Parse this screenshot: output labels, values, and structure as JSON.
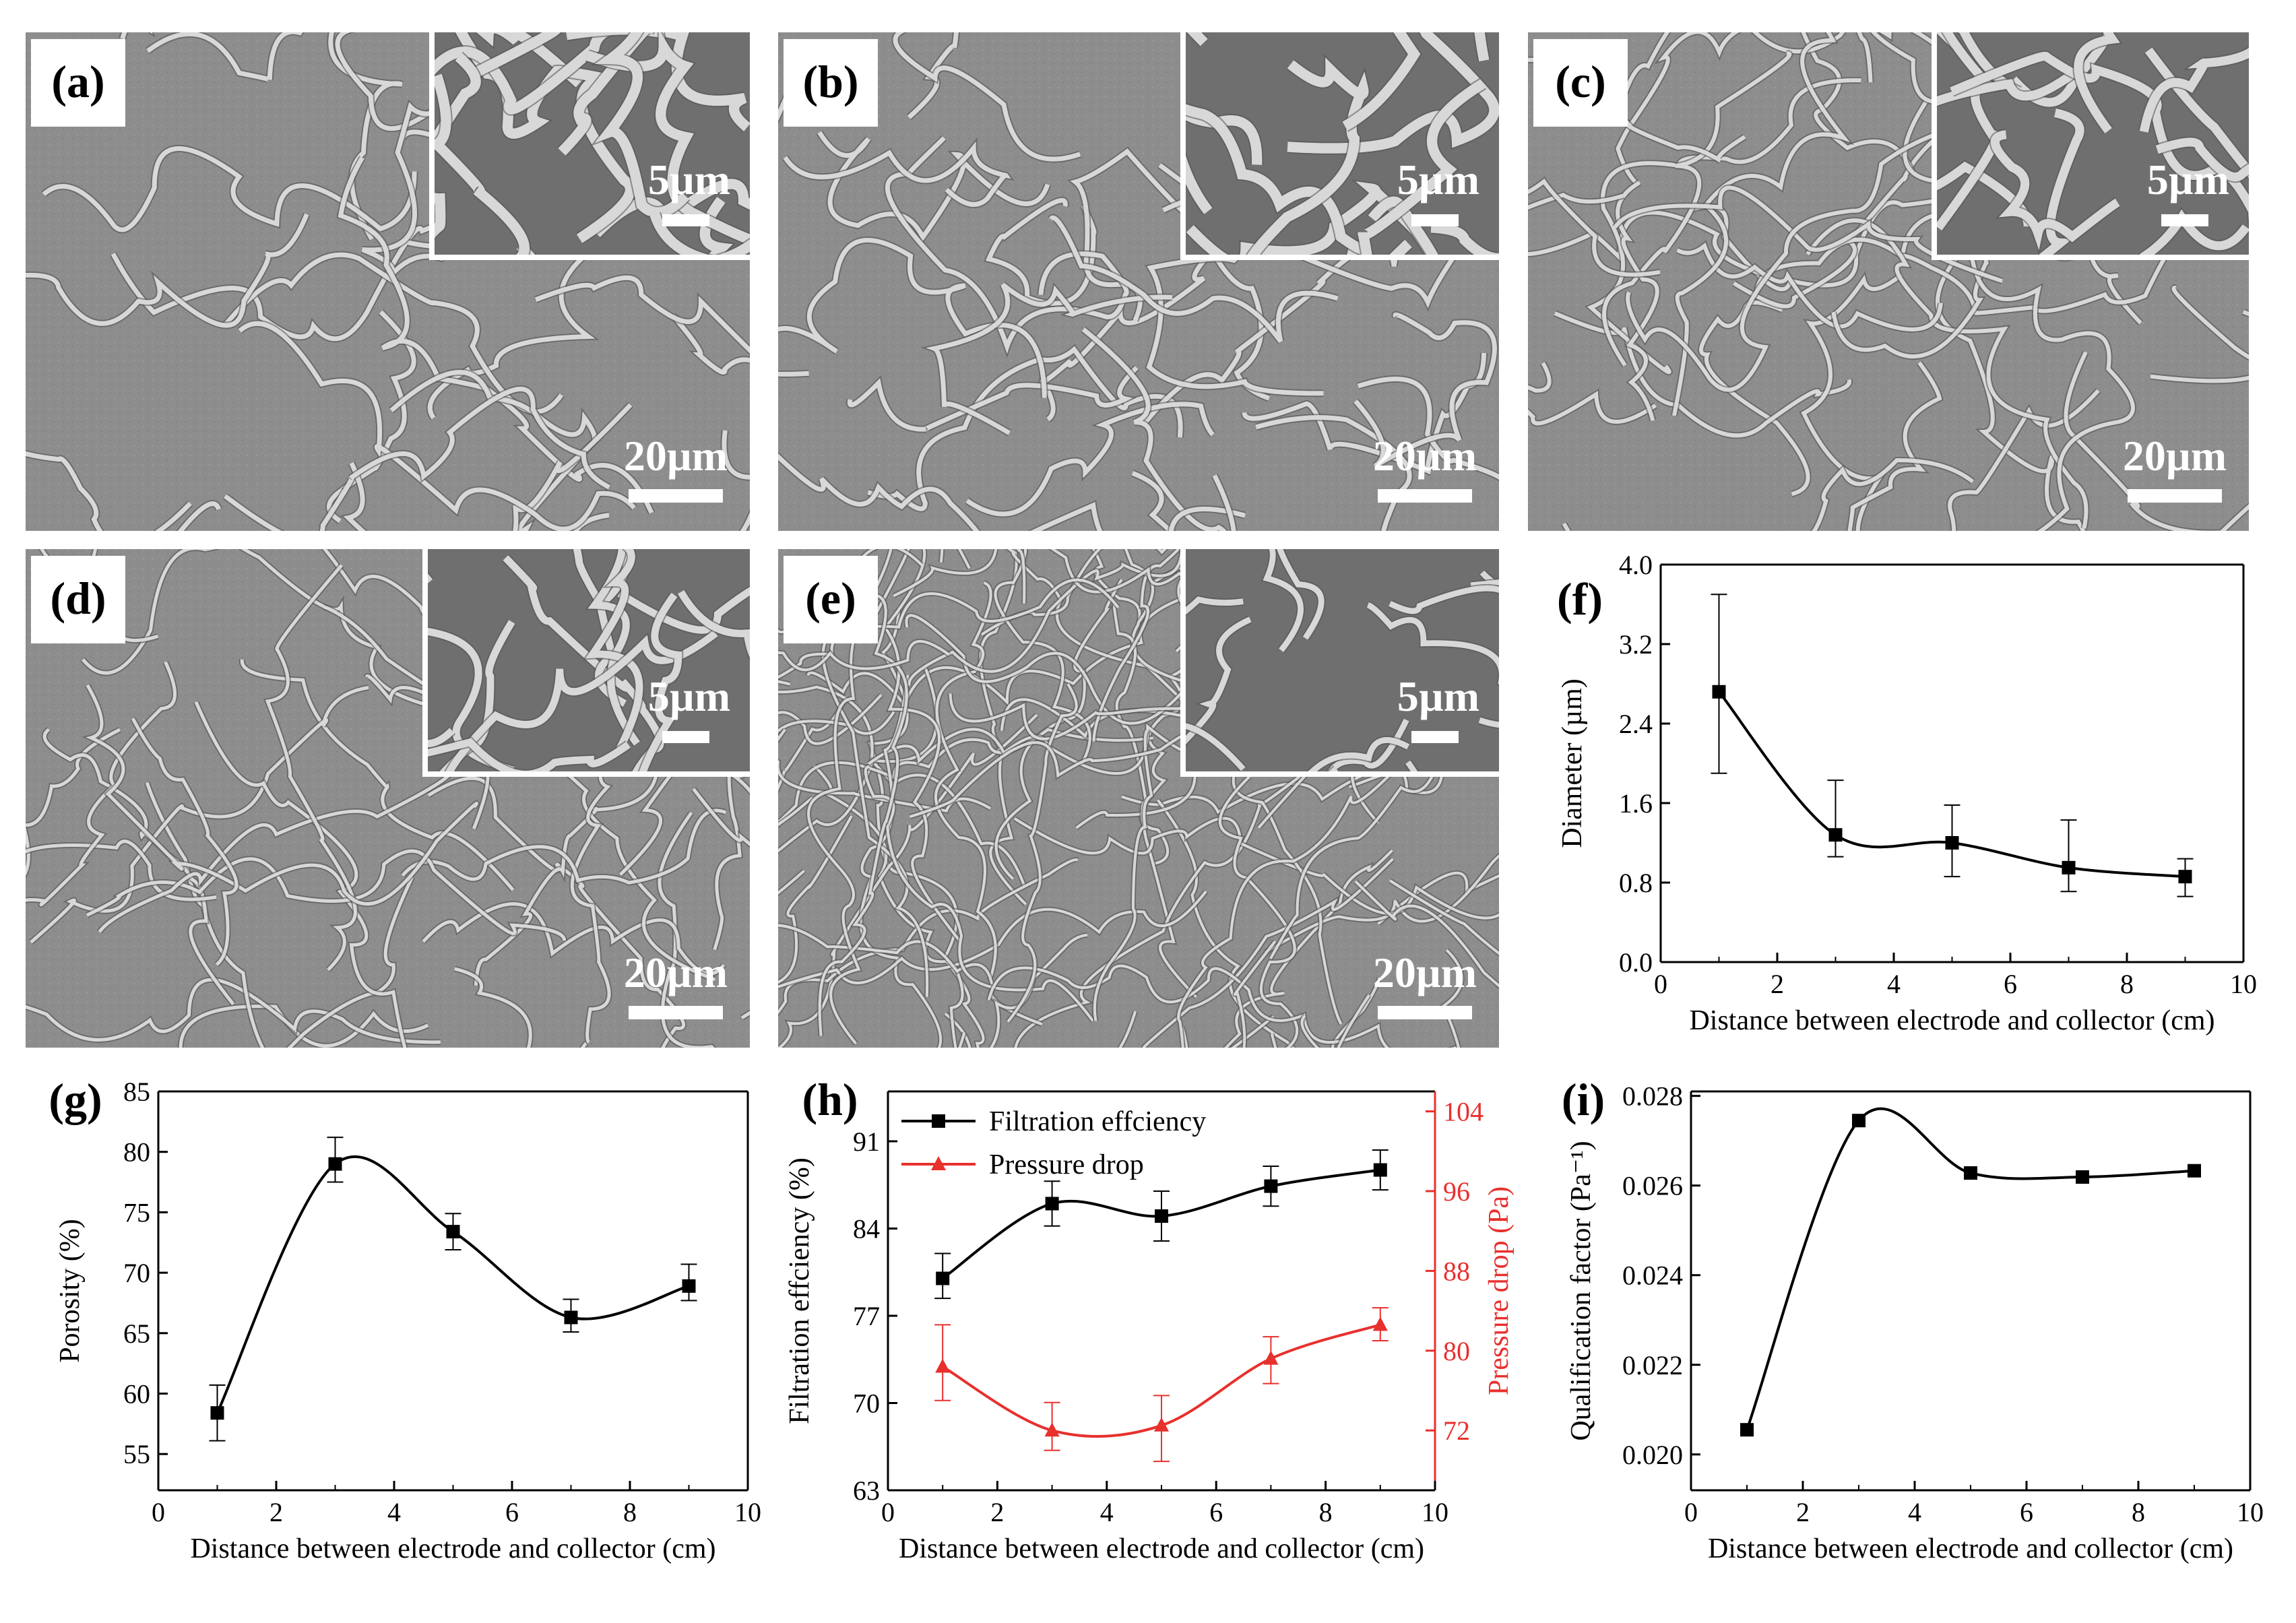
{
  "colors": {
    "series_black": "#000000",
    "series_red": "#e8302d",
    "sem_background": "#8a8a8a",
    "sem_fiber": "#d8d8d8",
    "sem_fiber_shadow": "#555555"
  },
  "micrographs": [
    {
      "label": "(a)",
      "scale_main": "20µm",
      "scale_inset": "5µm",
      "style": "beaded-coils"
    },
    {
      "label": "(b)",
      "scale_main": "20µm",
      "scale_inset": "5µm",
      "style": "coiled"
    },
    {
      "label": "(c)",
      "scale_main": "20µm",
      "scale_inset": "5µm",
      "style": "curly"
    },
    {
      "label": "(d)",
      "scale_main": "20µm",
      "scale_inset": "5µm",
      "style": "wavy"
    },
    {
      "label": "(e)",
      "scale_main": "20µm",
      "scale_inset": "5µm",
      "style": "dense-straight"
    }
  ],
  "chart_data": [
    {
      "id": "f",
      "label": "(f)",
      "type": "line",
      "title": "",
      "xlabel": "Distance between electrode and collector (cm)",
      "ylabel": "Diameter (µm)",
      "xlim": [
        0,
        10
      ],
      "ylim": [
        0.0,
        4.0
      ],
      "xticks": [
        "0",
        "2",
        "4",
        "6",
        "8",
        "10"
      ],
      "yticks": [
        "0.0",
        "0.8",
        "1.6",
        "2.4",
        "3.2",
        "4.0"
      ],
      "series": [
        {
          "name": "Diameter",
          "x": [
            1,
            3,
            5,
            7,
            9
          ],
          "y": [
            2.72,
            1.28,
            1.2,
            0.95,
            0.86
          ],
          "err_up": [
            0.98,
            0.55,
            0.38,
            0.48,
            0.18
          ],
          "err_down": [
            0.82,
            0.22,
            0.34,
            0.24,
            0.2
          ]
        }
      ]
    },
    {
      "id": "g",
      "label": "(g)",
      "type": "line",
      "title": "",
      "xlabel": "Distance between electrode and collector (cm)",
      "ylabel": "Porosity (%)",
      "xlim": [
        0,
        10
      ],
      "ylim": [
        52,
        85
      ],
      "xticks": [
        "0",
        "2",
        "4",
        "6",
        "8",
        "10"
      ],
      "yticks": [
        "55",
        "60",
        "65",
        "70",
        "75",
        "80",
        "85"
      ],
      "series": [
        {
          "name": "Porosity",
          "x": [
            1,
            3,
            5,
            7,
            9
          ],
          "y": [
            58.4,
            79.0,
            73.4,
            66.3,
            68.9
          ],
          "err_up": [
            2.3,
            2.2,
            1.5,
            1.5,
            1.8
          ],
          "err_down": [
            2.3,
            1.5,
            1.5,
            1.2,
            1.2
          ]
        }
      ]
    },
    {
      "id": "h",
      "label": "(h)",
      "type": "line",
      "title": "",
      "xlabel": "Distance between electrode and collector (cm)",
      "ylabel": "Filtration effciency (%)",
      "ylabel_right": "Pressure drop (Pa)",
      "xlim": [
        0,
        10
      ],
      "ylim": [
        63,
        95
      ],
      "ylim_right": [
        66,
        106
      ],
      "xticks": [
        "0",
        "2",
        "4",
        "6",
        "8",
        "10"
      ],
      "yticks": [
        "63",
        "70",
        "77",
        "84",
        "91"
      ],
      "yticks_right": [
        "72",
        "80",
        "88",
        "96",
        "104"
      ],
      "series": [
        {
          "name": "Filtration effciency",
          "axis": "left",
          "marker": "square",
          "x": [
            1,
            3,
            5,
            7,
            9
          ],
          "y": [
            80.0,
            86.0,
            85.0,
            87.4,
            88.7
          ],
          "err_up": [
            2.0,
            1.8,
            2.0,
            1.6,
            1.6
          ],
          "err_down": [
            1.6,
            1.8,
            2.0,
            1.6,
            1.6
          ]
        },
        {
          "name": "Pressure drop",
          "axis": "right",
          "marker": "triangle",
          "x": [
            1,
            3,
            5,
            7,
            9
          ],
          "y": [
            78.4,
            72.0,
            72.5,
            79.2,
            82.6
          ],
          "err_up": [
            4.2,
            2.8,
            3.0,
            2.2,
            1.7
          ],
          "err_down": [
            3.4,
            2.0,
            3.6,
            2.5,
            1.6
          ]
        }
      ],
      "legend": [
        "Filtration effciency",
        "Pressure drop"
      ]
    },
    {
      "id": "i",
      "label": "(i)",
      "type": "line",
      "title": "",
      "xlabel": "Distance between electrode and collector (cm)",
      "ylabel": "Qualification factor (Pa⁻¹)",
      "xlim": [
        0,
        10
      ],
      "ylim": [
        0.0192,
        0.0281
      ],
      "xticks": [
        "0",
        "2",
        "4",
        "6",
        "8",
        "10"
      ],
      "yticks": [
        "0.020",
        "0.022",
        "0.024",
        "0.026",
        "0.028"
      ],
      "series": [
        {
          "name": "Qualification factor",
          "x": [
            1,
            3,
            5,
            7,
            9
          ],
          "y": [
            0.02055,
            0.02745,
            0.02628,
            0.02619,
            0.02633
          ]
        }
      ]
    }
  ]
}
